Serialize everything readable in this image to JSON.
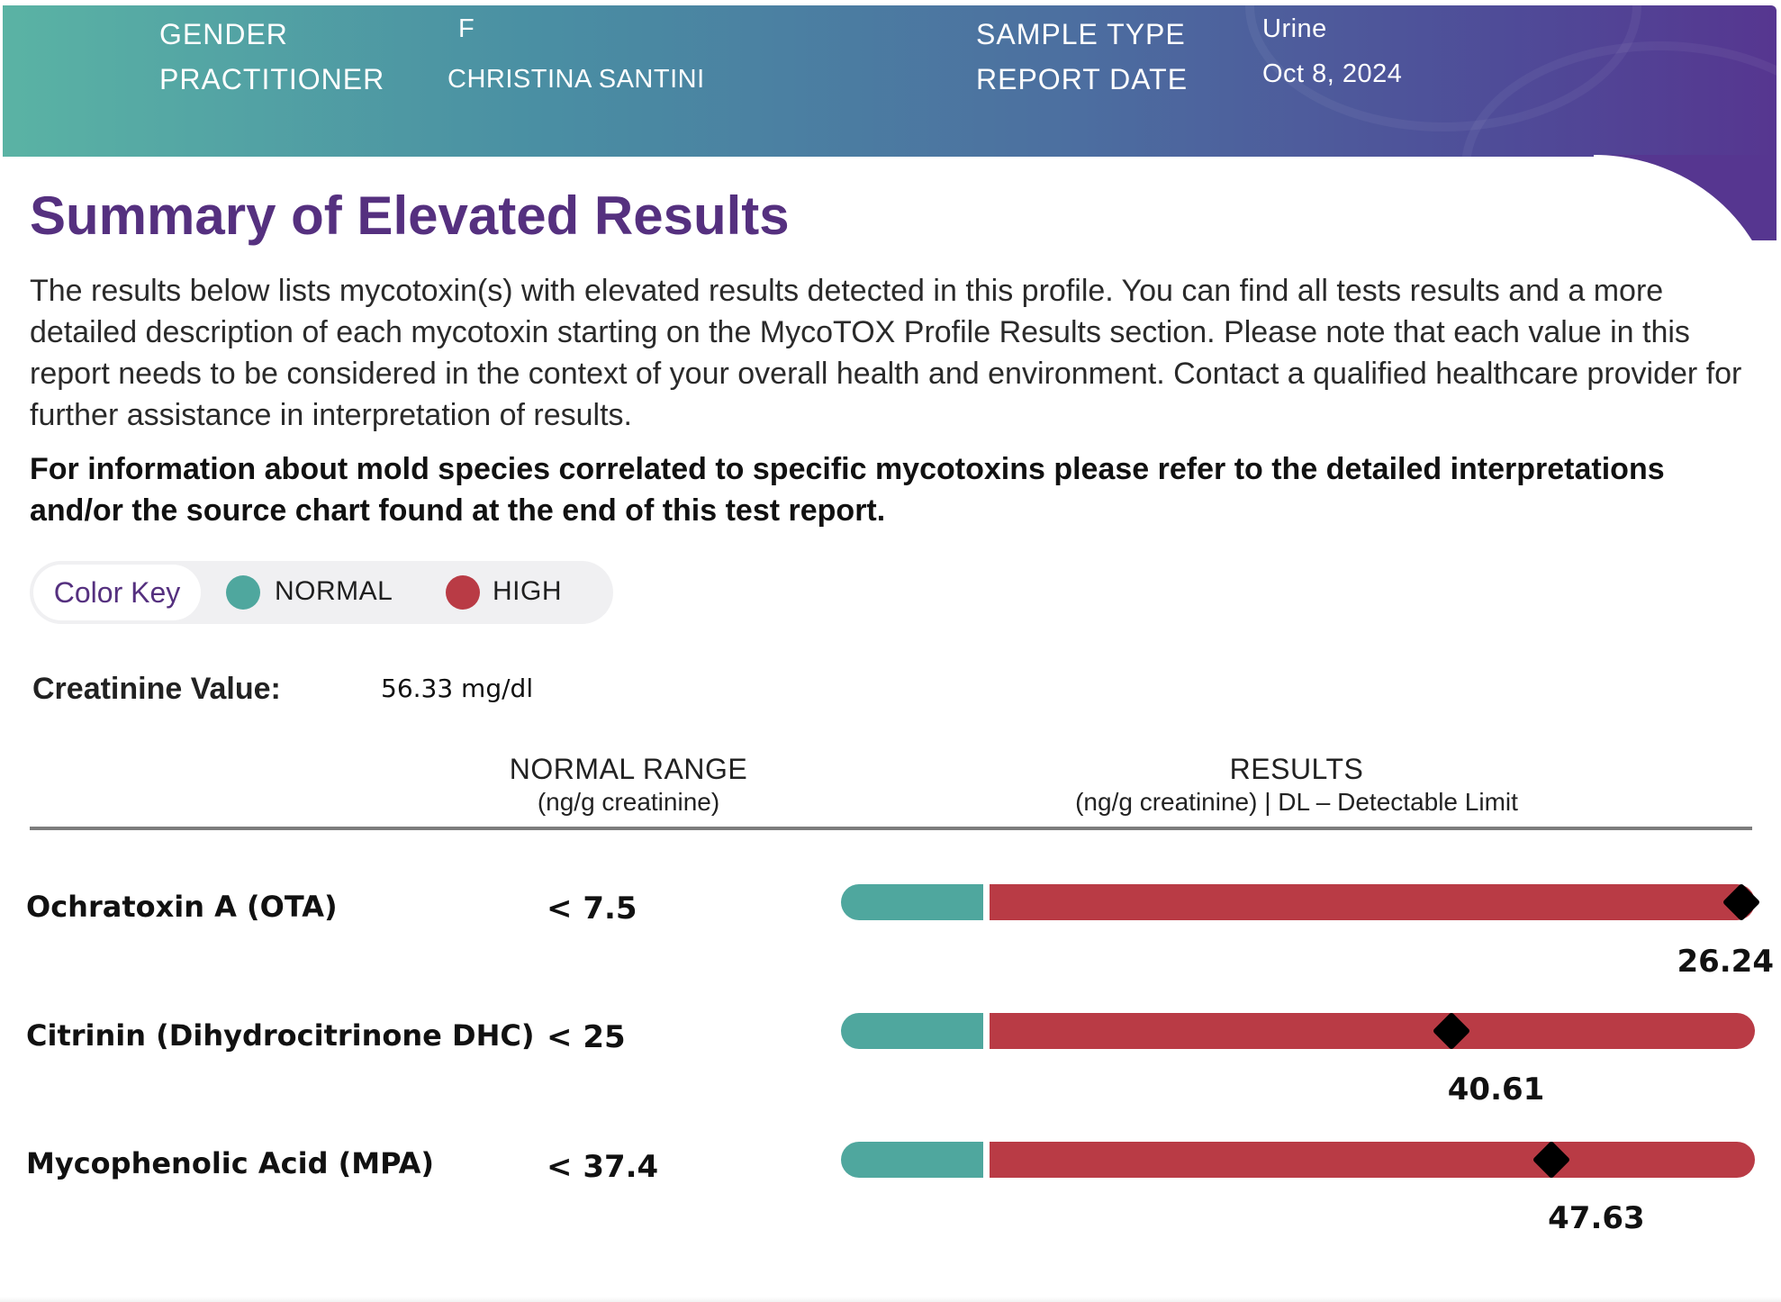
{
  "header": {
    "gender_label": "GENDER",
    "gender_value": "F",
    "practitioner_label": "PRACTITIONER",
    "practitioner_value": "CHRISTINA SANTINI",
    "sample_type_label": "SAMPLE TYPE",
    "sample_type_value": "Urine",
    "report_date_label": "REPORT DATE",
    "report_date_value": "Oct 8, 2024"
  },
  "title": "Summary of Elevated Results",
  "intro": "The results below lists mycotoxin(s) with elevated results detected in this profile. You can find all tests results and a more detailed description of each mycotoxin starting on the MycoTOX Profile Results section. Please note that each value in this report needs to be considered in the context of your overall health and environment. Contact a qualified healthcare provider for further assistance in interpretation of results.",
  "note": "For information about mold species correlated to specific mycotoxins please refer to the detailed interpretations and/or the source chart found at the end of this test report.",
  "color_key": {
    "title": "Color Key",
    "normal_label": "NORMAL",
    "high_label": "HIGH",
    "normal_color": "#4fa79e",
    "high_color": "#b93b45"
  },
  "creatinine": {
    "label": "Creatinine Value:",
    "value": "56.33 mg/dl"
  },
  "table": {
    "range_header": "NORMAL RANGE",
    "range_sub": "(ng/g creatinine)",
    "results_header": "RESULTS",
    "results_sub": "(ng/g creatinine) | DL – Detectable Limit",
    "rows": [
      {
        "name": "Ochratoxin A (OTA)",
        "range": "< 7.5",
        "value": "26.24",
        "marker_pos": 0.982
      },
      {
        "name": "Citrinin (Dihydrocitrinone DHC)",
        "range": "< 25",
        "value": "40.61",
        "marker_pos": 0.603
      },
      {
        "name": "Mycophenolic Acid (MPA)",
        "range": "< 37.4",
        "value": "47.63",
        "marker_pos": 0.734
      }
    ]
  }
}
